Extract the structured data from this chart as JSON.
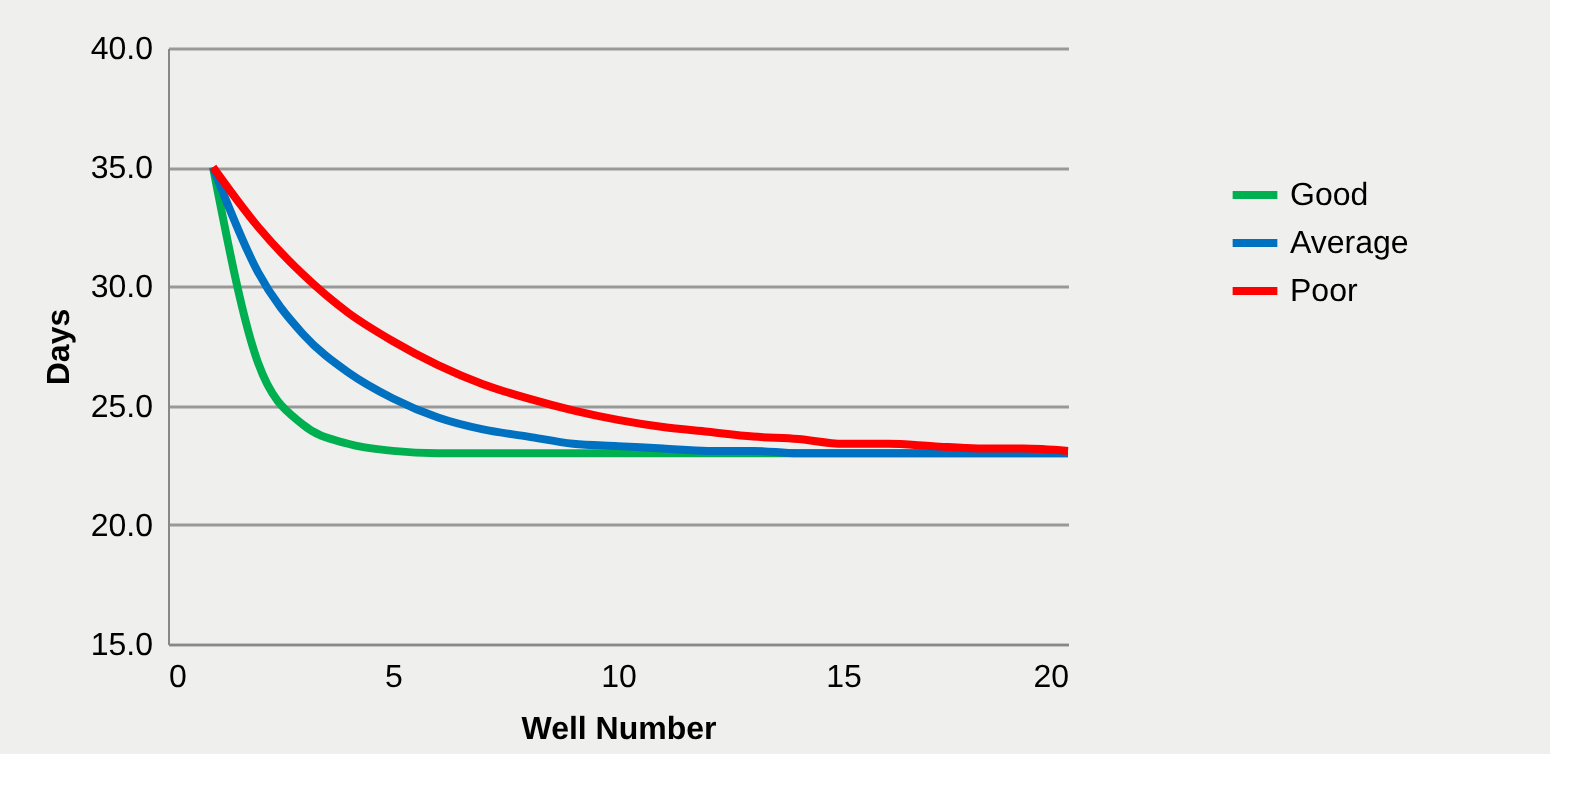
{
  "chart_data": {
    "type": "line",
    "xlabel": "Well Number",
    "ylabel": "Days",
    "x": [
      1,
      2,
      3,
      4,
      5,
      6,
      7,
      8,
      9,
      10,
      11,
      12,
      13,
      14,
      15,
      16,
      17,
      18,
      19,
      20
    ],
    "series": [
      {
        "name": "Good",
        "color": "#00b050",
        "values": [
          35.0,
          26.8,
          24.2,
          23.4,
          23.1,
          23.0,
          23.0,
          23.0,
          23.0,
          23.0,
          23.0,
          23.0,
          23.0,
          23.0,
          23.0,
          23.0,
          23.0,
          23.0,
          23.0,
          23.0
        ]
      },
      {
        "name": "Average",
        "color": "#0070c0",
        "values": [
          35.0,
          30.6,
          28.0,
          26.4,
          25.3,
          24.5,
          24.0,
          23.7,
          23.4,
          23.3,
          23.2,
          23.1,
          23.1,
          23.0,
          23.0,
          23.0,
          23.0,
          23.0,
          23.0,
          23.0
        ]
      },
      {
        "name": "Poor",
        "color": "#ff0000",
        "values": [
          35.0,
          32.5,
          30.5,
          28.9,
          27.7,
          26.7,
          25.9,
          25.3,
          24.8,
          24.4,
          24.1,
          23.9,
          23.7,
          23.6,
          23.4,
          23.4,
          23.3,
          23.2,
          23.2,
          23.1
        ]
      }
    ],
    "xlim": [
      0,
      20
    ],
    "xticks": [
      0,
      5,
      10,
      15,
      20
    ],
    "ylim": [
      15,
      40
    ],
    "yticks": [
      {
        "value": 15,
        "label": "15.0"
      },
      {
        "value": 20,
        "label": "20.0"
      },
      {
        "value": 25,
        "label": "25.0"
      },
      {
        "value": 30,
        "label": "30.0"
      },
      {
        "value": 35,
        "label": "35.0"
      },
      {
        "value": 40,
        "label": "40.0"
      }
    ],
    "grid": "y",
    "legend": "right",
    "marker": "none",
    "line_style": "solid"
  }
}
